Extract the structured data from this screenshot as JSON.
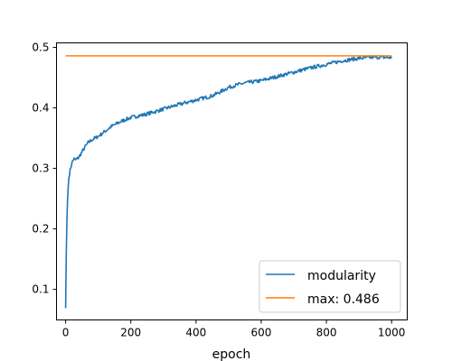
{
  "chart_data": {
    "type": "line",
    "title": "",
    "xlabel": "epoch",
    "ylabel": "",
    "xlim": [
      -28,
      1048
    ],
    "ylim": [
      0.0495,
      0.5075
    ],
    "xticks": [
      0,
      200,
      400,
      600,
      800,
      1000
    ],
    "xtick_labels": [
      "0",
      "200",
      "400",
      "600",
      "800",
      "1000"
    ],
    "yticks": [
      0.1,
      0.2,
      0.3,
      0.4,
      0.5
    ],
    "ytick_labels": [
      "0.1",
      "0.2",
      "0.3",
      "0.4",
      "0.5"
    ],
    "grid": false,
    "legend_position": "lower-right",
    "series": [
      {
        "name": "modularity",
        "color": "#1f77b4",
        "x": [
          0,
          2,
          5,
          8,
          10,
          15,
          20,
          25,
          30,
          40,
          50,
          60,
          70,
          80,
          100,
          120,
          140,
          160,
          180,
          200,
          250,
          300,
          350,
          400,
          450,
          480,
          500,
          520,
          540,
          560,
          600,
          650,
          700,
          750,
          800,
          850,
          900,
          950,
          1000
        ],
        "y": [
          0.069,
          0.16,
          0.24,
          0.27,
          0.285,
          0.3,
          0.31,
          0.316,
          0.314,
          0.318,
          0.327,
          0.336,
          0.343,
          0.347,
          0.353,
          0.361,
          0.369,
          0.375,
          0.38,
          0.384,
          0.39,
          0.398,
          0.406,
          0.413,
          0.42,
          0.428,
          0.434,
          0.437,
          0.44,
          0.442,
          0.445,
          0.452,
          0.459,
          0.466,
          0.472,
          0.478,
          0.482,
          0.484,
          0.483
        ]
      },
      {
        "name": "max: 0.486",
        "color": "#ff7f0e",
        "x": [
          0,
          1000
        ],
        "y": [
          0.486,
          0.486
        ]
      }
    ]
  }
}
